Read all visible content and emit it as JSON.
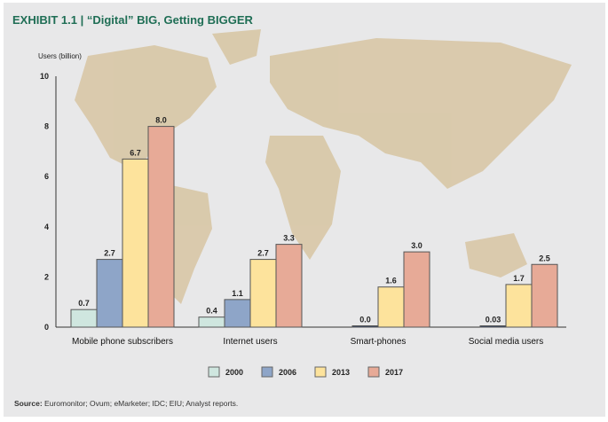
{
  "title": "EXHIBIT 1.1 | “Digital” BIG, Getting BIGGER",
  "source_label": "Source:",
  "source_text": "Euromonitor; Ovum; eMarketer; IDC; EIU; Analyst reports.",
  "chart_data": {
    "type": "bar",
    "title": "EXHIBIT 1.1 | “Digital” BIG, Getting BIGGER",
    "ylabel": "Users (billion)",
    "xlabel": "",
    "ylim": [
      0,
      10
    ],
    "yticks": [
      0,
      2,
      4,
      6,
      8,
      10
    ],
    "grid": false,
    "legend_position": "bottom",
    "background": "world map",
    "categories": [
      "Mobile phone subscribers",
      "Internet users",
      "Smart-phones",
      "Social media users"
    ],
    "series": [
      {
        "name": "2000",
        "color": "#cfe6df",
        "values": [
          0.7,
          0.4,
          null,
          null
        ],
        "labels": [
          "0.7",
          "0.4",
          "",
          ""
        ]
      },
      {
        "name": "2006",
        "color": "#8ea5c8",
        "values": [
          2.7,
          1.1,
          0.0,
          0.03
        ],
        "labels": [
          "2.7",
          "1.1",
          "0.0",
          "0.03"
        ]
      },
      {
        "name": "2013",
        "color": "#fde39c",
        "values": [
          6.7,
          2.7,
          1.6,
          1.7
        ],
        "labels": [
          "6.7",
          "2.7",
          "1.6",
          "1.7"
        ]
      },
      {
        "name": "2017",
        "color": "#e7aa97",
        "values": [
          8.0,
          3.3,
          3.0,
          2.5
        ],
        "labels": [
          "8.0",
          "3.3",
          "3.0",
          "2.5"
        ]
      }
    ]
  }
}
